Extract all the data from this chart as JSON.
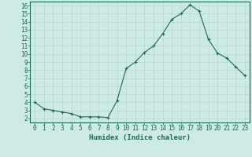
{
  "x": [
    0,
    1,
    2,
    3,
    4,
    5,
    6,
    7,
    8,
    9,
    10,
    11,
    12,
    13,
    14,
    15,
    16,
    17,
    18,
    19,
    20,
    21,
    22,
    23
  ],
  "y": [
    4.0,
    3.2,
    3.0,
    2.8,
    2.6,
    2.2,
    2.2,
    2.2,
    2.1,
    4.2,
    8.2,
    9.0,
    10.2,
    11.0,
    12.5,
    14.3,
    15.0,
    16.1,
    15.3,
    11.8,
    10.1,
    9.5,
    8.4,
    7.3
  ],
  "line_color": "#1a6b5a",
  "marker": "+",
  "bg_color": "#ceeae4",
  "grid_color": "#b8d8d2",
  "xlabel": "Humidex (Indice chaleur)",
  "xlim": [
    -0.5,
    23.5
  ],
  "ylim": [
    1.5,
    16.5
  ],
  "yticks": [
    2,
    3,
    4,
    5,
    6,
    7,
    8,
    9,
    10,
    11,
    12,
    13,
    14,
    15,
    16
  ],
  "xticks": [
    0,
    1,
    2,
    3,
    4,
    5,
    6,
    7,
    8,
    9,
    10,
    11,
    12,
    13,
    14,
    15,
    16,
    17,
    18,
    19,
    20,
    21,
    22,
    23
  ],
  "tick_color": "#1a6b5a",
  "label_fontsize": 5.5,
  "xlabel_fontsize": 6.5
}
